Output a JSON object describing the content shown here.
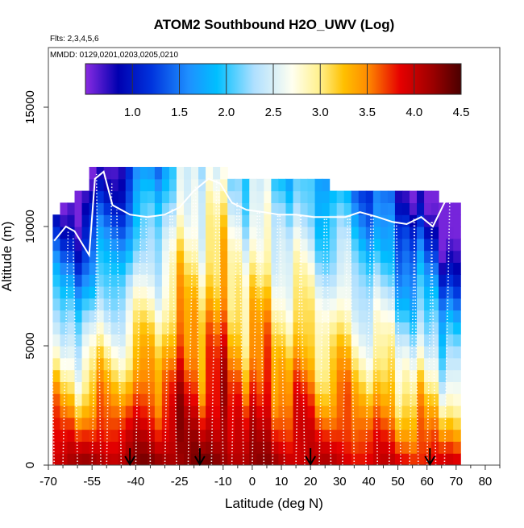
{
  "chart_data": {
    "type": "heatmap",
    "title": "ATOM2 Southbound H2O_UWV (Log)",
    "flights_note": "Flts: 2,3,4,5,6",
    "dates_note": "MMDD: 0129,0201,0203,0205,0210",
    "xlabel": "Latitude (deg N)",
    "ylabel": "Altitude (m)",
    "xlim": [
      -70,
      85
    ],
    "ylim": [
      0,
      17500
    ],
    "x_ticks": [
      -70,
      -55,
      -40,
      -25,
      -10,
      0,
      10,
      20,
      30,
      40,
      50,
      60,
      70,
      80
    ],
    "x_tick_labels": [
      "-70",
      "-55",
      "-40",
      "-25",
      "-10",
      "0",
      "10",
      "20",
      "30",
      "40",
      "50",
      "60",
      "70",
      "80"
    ],
    "x_minor_ticks": [
      -65,
      -60,
      -50,
      -45,
      -35,
      -30,
      -20,
      -15,
      -5,
      5,
      15,
      25,
      35,
      45,
      55,
      65,
      75,
      85
    ],
    "y_ticks": [
      0,
      5000,
      10000,
      15000
    ],
    "y_tick_labels": [
      "0",
      "5000",
      "10000",
      "15000"
    ],
    "colorbar": {
      "range": [
        0.5,
        4.5
      ],
      "ticks": [
        1.0,
        1.5,
        2.0,
        2.5,
        3.0,
        3.5,
        4.0,
        4.5
      ],
      "tick_labels": [
        "1.0",
        "1.5",
        "2.0",
        "2.5",
        "3.0",
        "3.5",
        "4.0",
        "4.5"
      ],
      "colors": [
        "#8a2be2",
        "#0000b0",
        "#0033dd",
        "#1e90ff",
        "#00bfff",
        "#b0e0ff",
        "#fffff0",
        "#fff08a",
        "#ffc000",
        "#ff8c00",
        "#e60000",
        "#9b0000",
        "#4a0000"
      ],
      "stops": [
        0.5,
        0.85,
        1.2,
        1.6,
        1.9,
        2.3,
        2.7,
        3.0,
        3.25,
        3.5,
        3.85,
        4.2,
        4.5
      ]
    },
    "arrow_latitudes": [
      -42,
      -18,
      20,
      61
    ],
    "profile_latitudes": [
      -68,
      -65,
      -60,
      -55,
      -52,
      -50,
      -45,
      -40,
      -35,
      -30,
      -26,
      -22,
      -18,
      -14,
      -10,
      -7,
      -3,
      0,
      4,
      7,
      11,
      15,
      18,
      23,
      27,
      31,
      35,
      39,
      43,
      47,
      51,
      54,
      57,
      60,
      63,
      66
    ],
    "ceiling_profile": [
      [
        -68,
        9400
      ],
      [
        -64,
        10000
      ],
      [
        -61,
        9800
      ],
      [
        -56,
        8800
      ],
      [
        -54,
        12000
      ],
      [
        -51,
        12300
      ],
      [
        -48,
        10900
      ],
      [
        -42,
        10500
      ],
      [
        -36,
        10400
      ],
      [
        -30,
        10500
      ],
      [
        -25,
        10800
      ],
      [
        -20,
        11500
      ],
      [
        -15,
        12000
      ],
      [
        -11,
        11800
      ],
      [
        -7,
        11000
      ],
      [
        -2,
        10700
      ],
      [
        4,
        10600
      ],
      [
        9,
        10500
      ],
      [
        15,
        10500
      ],
      [
        21,
        10400
      ],
      [
        27,
        10400
      ],
      [
        32,
        10400
      ],
      [
        37,
        10600
      ],
      [
        43,
        10400
      ],
      [
        48,
        10200
      ],
      [
        53,
        10100
      ],
      [
        58,
        10400
      ],
      [
        62,
        10000
      ],
      [
        66,
        11000
      ],
      [
        69,
        11300
      ]
    ],
    "heatmap_model": {
      "x_range": [
        -68.5,
        70.5
      ],
      "y_step": 500,
      "top_profile": [
        [
          -68,
          10500
        ],
        [
          -66,
          10500
        ],
        [
          -64,
          11000
        ],
        [
          -60,
          11000
        ],
        [
          -57,
          11500
        ],
        [
          -55,
          12500
        ],
        [
          -50,
          12500
        ],
        [
          -45,
          12500
        ],
        [
          -40,
          12500
        ],
        [
          -30,
          12500
        ],
        [
          -15,
          12500
        ],
        [
          -10,
          12500
        ],
        [
          -9,
          12000
        ],
        [
          0,
          12000
        ],
        [
          10,
          12000
        ],
        [
          20,
          12000
        ],
        [
          25,
          12000
        ],
        [
          26,
          11500
        ],
        [
          35,
          11500
        ],
        [
          45,
          11500
        ],
        [
          55,
          11500
        ],
        [
          60,
          11500
        ],
        [
          64,
          11500
        ],
        [
          65,
          11000
        ],
        [
          70,
          11000
        ]
      ],
      "surface_profile": [
        [
          -70,
          4.1
        ],
        [
          -60,
          4.15
        ],
        [
          -45,
          4.2
        ],
        [
          -25,
          4.3
        ],
        [
          -10,
          4.25
        ],
        [
          0,
          4.2
        ],
        [
          15,
          4.1
        ],
        [
          30,
          4.0
        ],
        [
          45,
          3.95
        ],
        [
          60,
          3.9
        ],
        [
          70,
          3.9
        ]
      ],
      "moisture_scale_height_profile": [
        [
          -70,
          3200
        ],
        [
          -55,
          3600
        ],
        [
          -40,
          4500
        ],
        [
          -25,
          6500
        ],
        [
          -15,
          8200
        ],
        [
          -8,
          7200
        ],
        [
          0,
          6800
        ],
        [
          10,
          6500
        ],
        [
          20,
          6000
        ],
        [
          30,
          5500
        ],
        [
          40,
          5000
        ],
        [
          50,
          4200
        ],
        [
          60,
          3600
        ],
        [
          70,
          3200
        ]
      ]
    }
  }
}
